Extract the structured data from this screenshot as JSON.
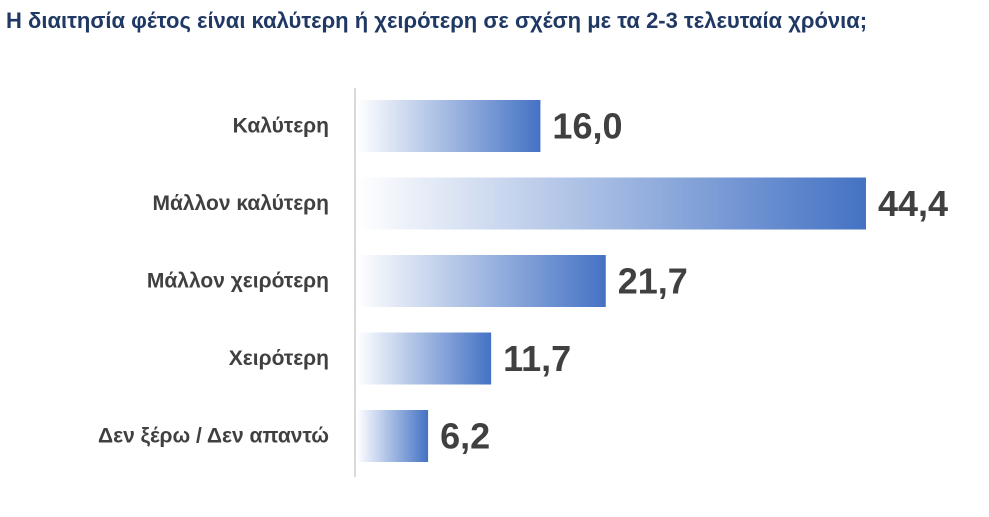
{
  "chart_data": {
    "type": "bar",
    "orientation": "horizontal",
    "title": "Η διαιτησία φέτος είναι καλύτερη ή χειρότερη σε σχέση με τα 2-3 τελευταία χρόνια;",
    "categories": [
      "Καλύτερη",
      "Μάλλον καλύτερη",
      "Μάλλον χειρότερη",
      "Χειρότερη",
      "Δεν ξέρω / Δεν απαντώ"
    ],
    "values": [
      16.0,
      44.4,
      21.7,
      11.7,
      6.2
    ],
    "value_labels": [
      "16,0",
      "44,4",
      "21,7",
      "11,7",
      "6,2"
    ],
    "xlim": [
      0,
      44.4
    ],
    "grid": false,
    "legend": "none",
    "bar_color": "#4472c4",
    "bar_fade_color": "#ffffff",
    "axis_color": "#d9d9d9"
  }
}
